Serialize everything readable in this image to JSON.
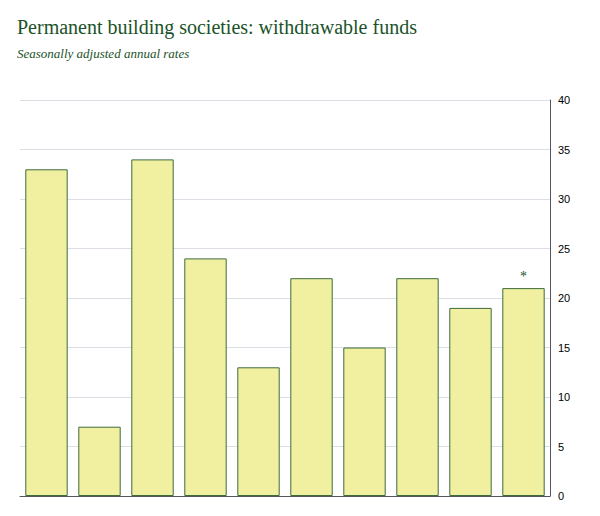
{
  "chart_data": {
    "type": "bar",
    "title": "Permanent building societies: withdrawable funds",
    "subtitle": "Seasonally adjusted annual rates",
    "categories": [
      null,
      null,
      null,
      null,
      null,
      null,
      null,
      null,
      null,
      null
    ],
    "values": [
      33,
      7,
      34,
      24,
      13,
      22,
      15,
      22,
      19,
      21
    ],
    "color": "#f0f0a0",
    "ylim": [
      0,
      40
    ],
    "yticks": [
      0,
      5,
      10,
      15,
      20,
      25,
      30,
      35,
      40
    ],
    "grid": true,
    "tick_labels": "y",
    "annotations": [
      {
        "text": "*",
        "index": 9
      }
    ]
  }
}
